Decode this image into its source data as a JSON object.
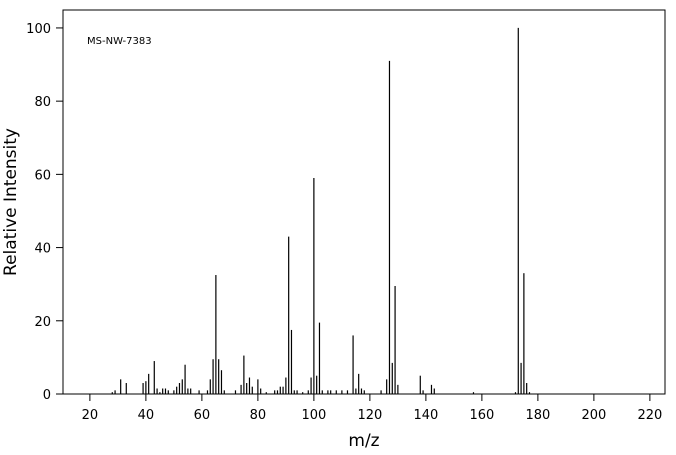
{
  "chart_data": {
    "type": "stick",
    "annotation": "MS-NW-7383",
    "x_label": "m/z",
    "y_label": "Relative Intensity",
    "x": [
      28,
      29,
      31,
      33,
      39,
      40,
      41,
      43,
      44,
      45,
      46,
      47,
      48,
      50,
      51,
      52,
      53,
      54,
      55,
      56,
      59,
      62,
      63,
      64,
      65,
      66,
      67,
      68,
      72,
      74,
      75,
      76,
      77,
      78,
      80,
      81,
      83,
      86,
      87,
      88,
      89,
      90,
      91,
      92,
      93,
      94,
      96,
      98,
      99,
      100,
      101,
      102,
      103,
      105,
      106,
      108,
      110,
      112,
      114,
      115,
      116,
      117,
      118,
      124,
      126,
      127,
      128,
      129,
      130,
      138,
      139,
      142,
      143,
      157,
      172,
      173,
      174,
      175,
      176,
      177
    ],
    "values": [
      0.5,
      1,
      4,
      3,
      3,
      3.5,
      5.5,
      9,
      1.5,
      0.5,
      1.5,
      1.5,
      1,
      1,
      2,
      3,
      4,
      8,
      1.5,
      1.5,
      1,
      1,
      4,
      9.5,
      32.5,
      9.5,
      6.5,
      1,
      1,
      2.5,
      10.5,
      3,
      4.5,
      2,
      4,
      1.5,
      0.5,
      1,
      1,
      2,
      2,
      4.5,
      43,
      17.5,
      1,
      1,
      0.5,
      1,
      4.5,
      59,
      5,
      19.5,
      1,
      1,
      1,
      1,
      1,
      1,
      16,
      1.5,
      5.5,
      1.5,
      1,
      1,
      4,
      91,
      8.5,
      29.5,
      2.5,
      5,
      1,
      2.5,
      1.5,
      0.5,
      0.5,
      100,
      8.5,
      33,
      3,
      0.5
    ],
    "color": "#000000",
    "xlim": [
      10.4,
      225.4
    ],
    "ylim": [
      0,
      104.9
    ],
    "xticks": [
      20,
      40,
      60,
      80,
      100,
      120,
      140,
      160,
      180,
      200,
      220
    ],
    "yticks": [
      0,
      20,
      40,
      60,
      80,
      100
    ]
  }
}
